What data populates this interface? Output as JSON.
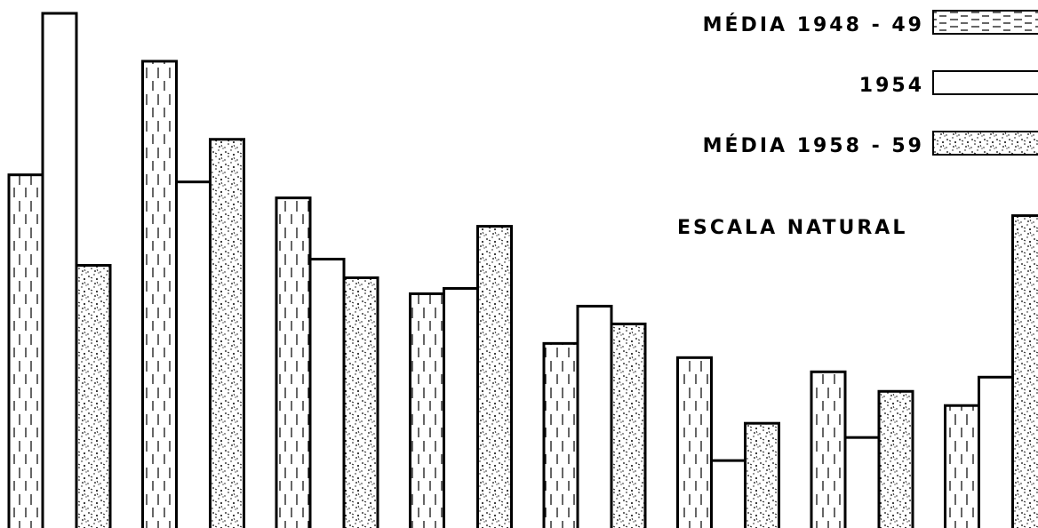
{
  "chart_data": {
    "type": "bar",
    "title": "",
    "xlabel": "",
    "ylabel": "",
    "ylim": [
      0,
      580
    ],
    "grid": false,
    "legend_position": "top-right",
    "note": "ESCALA NATURAL",
    "categories": [
      "",
      "",
      "",
      "",
      "",
      "",
      "",
      ""
    ],
    "series": [
      {
        "name": "MÉDIA 1948 - 49",
        "pattern": "dashes",
        "values": [
          398,
          526,
          372,
          264,
          208,
          192,
          176,
          138
        ]
      },
      {
        "name": "1954",
        "pattern": "plain",
        "values": [
          580,
          390,
          303,
          270,
          250,
          76,
          102,
          170
        ]
      },
      {
        "name": "MÉDIA 1958 - 59",
        "pattern": "dots",
        "values": [
          296,
          438,
          282,
          340,
          230,
          118,
          154,
          352
        ]
      }
    ]
  },
  "colors": {
    "ink": "#000000",
    "paper": "#ffffff"
  }
}
